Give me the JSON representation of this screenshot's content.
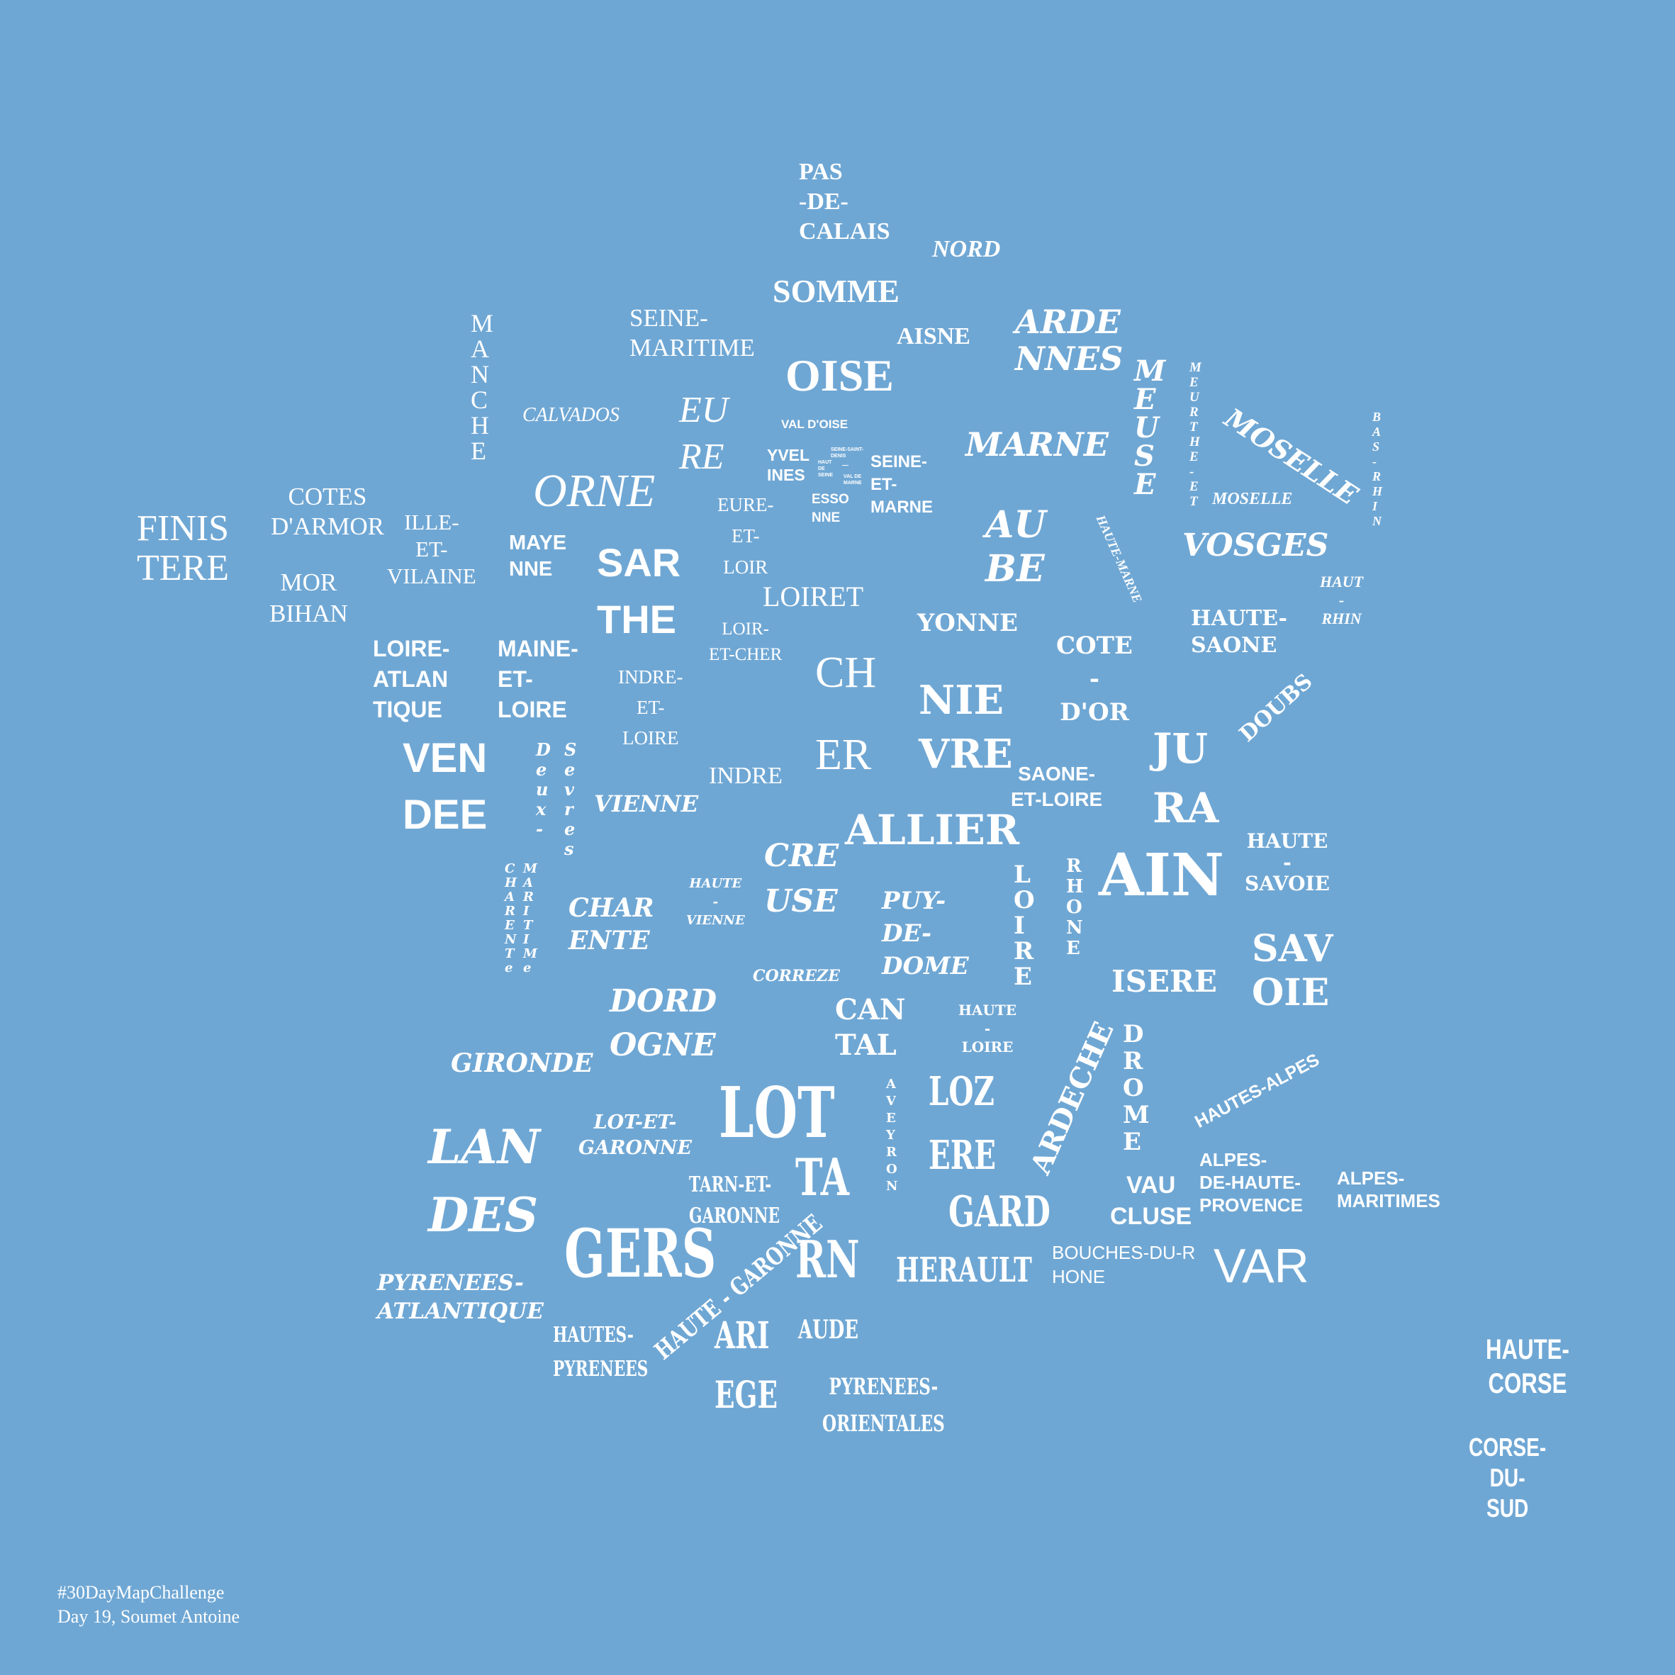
{
  "credits": {
    "line1": "#30DayMapChallenge",
    "line2": "Day 19, Soumet Antoine"
  },
  "labels": {
    "pas_de_calais": "PAS\n-DE-\nCALAIS",
    "nord": "NORD",
    "somme": "SOMME",
    "seine_maritime": "SEINE-\nMARITIME",
    "aisne": "AISNE",
    "ardennes": "ARDE\nNNES",
    "oise": "OISE",
    "manche": "M\nA\nN\nC\nH\nE",
    "calvados": "CALVADOS",
    "eure": "EU\nRE",
    "val_doise": "VAL D'OISE",
    "marne": "MARNE",
    "meuse": "M\nE\nU\nS\nE",
    "meurthe_et_moselle": "M\nE\nU\nR\nT\nH\nE\n-\nE\nT",
    "moselle_small": "MOSELLE",
    "moselle": "MOSELLE",
    "bas_rhin": "B\nA\nS\n-\nR\nH\nI\nN",
    "yvelines": "YVEL\nINES",
    "seine_saint_denis": "SEINE-SAINT-\nDENIS",
    "hauts_de_seine": "HAUT\nDE\nSEINE",
    "val_de_marne": "VAL DE\nMARNE",
    "essonne": "ESSO\nNNE",
    "seine_et_marne": "SEINE-\nET-\nMARNE",
    "paris": "—",
    "cotes_darmor": "COTES\nD'ARMOR",
    "finistere": "FINIS\nTERE",
    "ille_et_vilaine": "ILLE-\nET-\nVILAINE",
    "orne": "ORNE",
    "eure_et_loir": "EURE-\nET-\nLOIR",
    "aube": "AU\nBE",
    "haute_marne": "HAUTE-MARNE",
    "vosges": "VOSGES",
    "mayenne": "MAYE\nNNE",
    "morbihan": "MOR\nBIHAN",
    "sarthe": "SAR\nTHE",
    "loiret": "LOIRET",
    "haut_rhin": "HAUT\n-\nRHIN",
    "yonne": "YONNE",
    "haute_saone": "HAUTE-\nSAONE",
    "cote_dor": "COTE\n-\nD'OR",
    "loire_atlantique": "LOIRE-\nATLAN\nTIQUE",
    "maine_et_loire": "MAINE-\nET-\nLOIRE",
    "loir_et_cher": "LOIR-\nET-CHER",
    "indre_et_loire": "INDRE-\nET-\nLOIRE",
    "cher": "CH\n\nER",
    "nievre": "NIE\nVRE",
    "doubs": "DOUBS",
    "vendee": "VEN\nDEE",
    "deux_sevres": "D\ne\nu\nx\n-",
    "sevres": "S\ne\nv\nr\ne\ns",
    "indre": "INDRE",
    "vienne": "VIENNE",
    "jura": "JU\nRA",
    "saone_et_loire": "SAONE-\nET-LOIRE",
    "allier": "ALLIER",
    "creuse": "CRE\nUSE",
    "loire": "L\nO\nI\nR\nE",
    "rhone": "R\nH\nO\nN\nE",
    "ain": "AIN",
    "haute_savoie": "HAUTE\n-\nSAVOIE",
    "charente_maritime_a": "C\nH\nA\nR\nE\nN\nT\ne",
    "charente_maritime_b": "M\nA\nR\nI\nT\nI\nM\ne",
    "charente": "CHAR\nENTE",
    "haute_vienne": "HAUTE\n-\nVIENNE",
    "puy_de_dome": "PUY-\nDE-\nDOME",
    "savoie": "SAV\nOIE",
    "correze": "CORREZE",
    "isere": "ISERE",
    "dordogne": "DORD\nOGNE",
    "cantal": "CAN\nTAL",
    "haute_loire": "HAUTE\n-\nLOIRE",
    "ardeche": "ARDECHE",
    "drome": "D\nR\nO\nM\nE",
    "gironde": "GIRONDE",
    "hautes_alpes": "HAUTES-ALPES",
    "lot": "LOT",
    "aveyron": "A\nV\nE\nY\nR\nO\nN",
    "lozere": "LOZ\n\nERE",
    "lot_et_garonne": "LOT-ET-\nGARONNE",
    "landes": "LAN\n\nDES",
    "alpes_de_haute_provence": "ALPES-\nDE-HAUTE-\nPROVENCE",
    "alpes_maritimes": "ALPES-\nMARITIMES",
    "tarn_et_garonne": "TARN-ET-\nGARONNE",
    "tarn": "TA\n\nRN",
    "vaucluse": "VAU\nCLUSE",
    "gard": "GARD",
    "gers": "GERS",
    "herault": "HERAULT",
    "bouches_du_rhone": "BOUCHES-DU-R\nHONE",
    "var": "VAR",
    "pyrenees_atlantique": "PYRENEES-\nATLANTIQUE",
    "haute_garonne": "HAUTE - GARONNE",
    "hautes_pyrenees": "HAUTES-\nPYRENEES",
    "ariege": "ARI\n\nEGE",
    "aude": "AUDE",
    "pyrenees_orientales": "PYRENEES-\nORIENTALES",
    "haute_corse": "HAUTE-\nCORSE",
    "corse_du_sud": "CORSE-\nDU-\nSUD"
  }
}
